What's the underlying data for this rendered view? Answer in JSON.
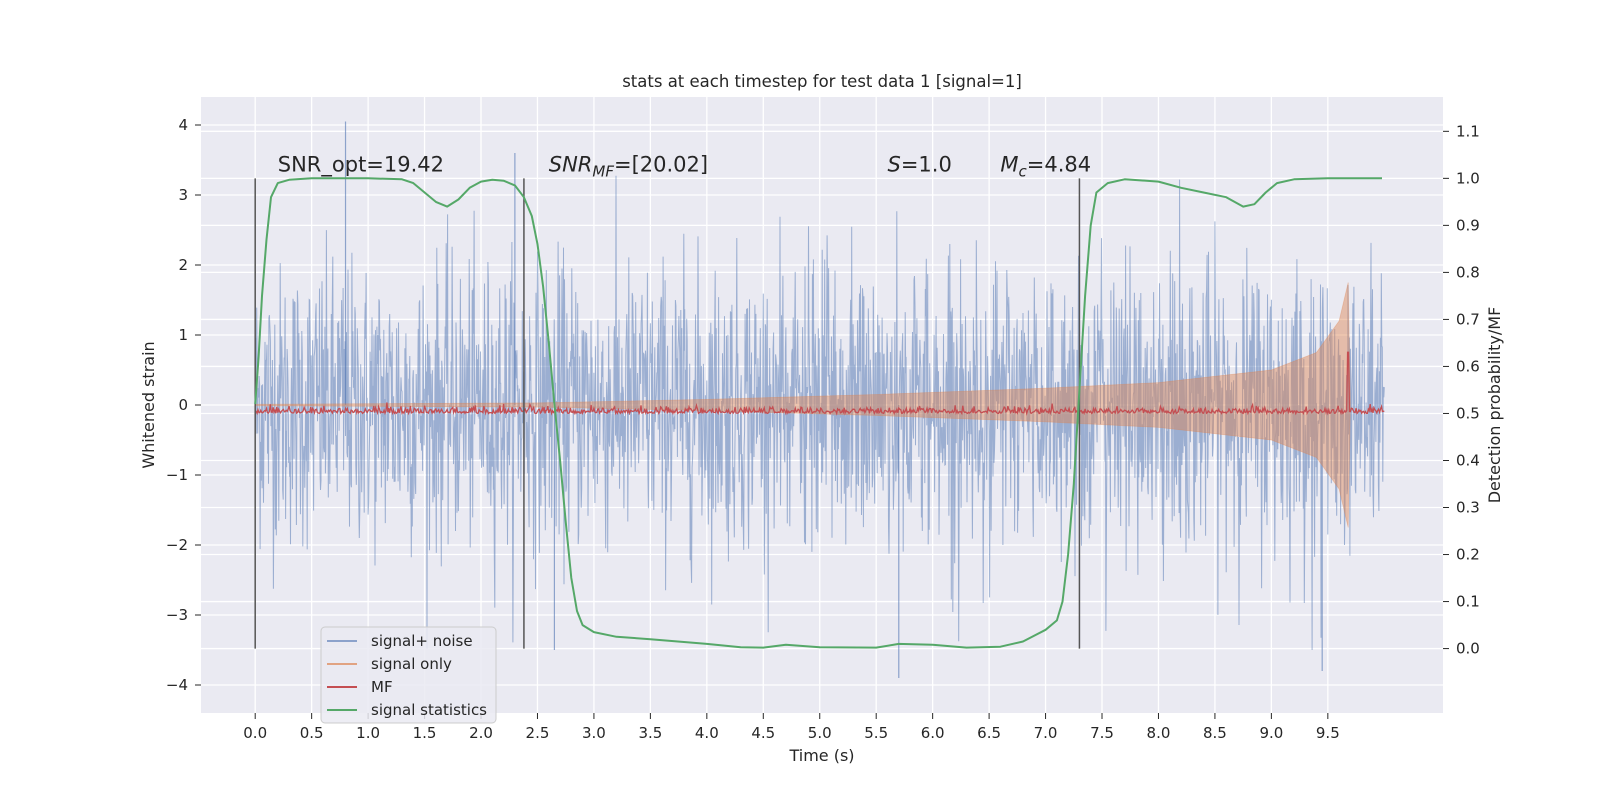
{
  "chart_data": {
    "type": "line",
    "title": "stats at each timestep for test data 1 [signal=1]",
    "xlabel": "Time (s)",
    "ylabel": "Whitened strain",
    "y2label": "Detection probability/MF",
    "xlim": [
      -0.48,
      10.52
    ],
    "ylim": [
      -4.4,
      4.4
    ],
    "y2lim": [
      -0.137,
      1.173
    ],
    "x_ticks": [
      "0.0",
      "0.5",
      "1.0",
      "1.5",
      "2.0",
      "2.5",
      "3.0",
      "3.5",
      "4.0",
      "4.5",
      "5.0",
      "5.5",
      "6.0",
      "6.5",
      "7.0",
      "7.5",
      "8.0",
      "8.5",
      "9.0",
      "9.5"
    ],
    "y_ticks": [
      "4",
      "3",
      "2",
      "1",
      "0",
      "−1",
      "−2",
      "−3",
      "−4"
    ],
    "y2_ticks": [
      "1.1",
      "1.0",
      "0.9",
      "0.8",
      "0.7",
      "0.6",
      "0.5",
      "0.4",
      "0.3",
      "0.2",
      "0.1",
      "0.0"
    ],
    "grid": true,
    "legend_position": "lower-left",
    "annotations": {
      "snr_opt": "SNR_opt=19.42",
      "snr_mf_italic": "SNR",
      "snr_mf_sub": "MF",
      "snr_mf_rest": "=[20.02]",
      "s_italic": "S",
      "s_rest": "=1.0",
      "mc_italic": "M",
      "mc_sub": "c",
      "mc_rest": "=4.84"
    },
    "segment_markers_x": [
      0.0,
      2.38,
      7.3
    ],
    "series": [
      {
        "name": "signal+ noise",
        "color": "#4c72b0",
        "axis": "left",
        "style": "noise band, x 0.0–10.0",
        "band_sigma": 1.0,
        "notable_values": [
          [
            0.8,
            4.05
          ],
          [
            2.3,
            3.6
          ],
          [
            9.45,
            -3.8
          ],
          [
            5.7,
            -3.9
          ],
          [
            2.65,
            -3.5
          ]
        ]
      },
      {
        "name": "signal only",
        "color": "#dd8452",
        "axis": "left",
        "style": "chirp envelope",
        "envelope": [
          [
            0.0,
            0.01
          ],
          [
            2.5,
            0.03
          ],
          [
            4.0,
            0.08
          ],
          [
            5.5,
            0.15
          ],
          [
            7.0,
            0.24
          ],
          [
            8.0,
            0.32
          ],
          [
            9.0,
            0.5
          ],
          [
            9.4,
            0.75
          ],
          [
            9.6,
            1.2
          ],
          [
            9.68,
            1.75
          ],
          [
            9.7,
            0.0
          ]
        ]
      },
      {
        "name": "MF",
        "color": "#c44e52",
        "axis": "right",
        "style": "jittery line near 0.5",
        "base": 0.5,
        "peak": [
          9.68,
          0.63
        ]
      },
      {
        "name": "signal statistics",
        "color": "#55a868",
        "axis": "right",
        "points": [
          [
            0.0,
            0.52
          ],
          [
            0.03,
            0.62
          ],
          [
            0.06,
            0.75
          ],
          [
            0.1,
            0.87
          ],
          [
            0.14,
            0.96
          ],
          [
            0.2,
            0.99
          ],
          [
            0.3,
            0.997
          ],
          [
            0.5,
            1.0
          ],
          [
            1.0,
            1.0
          ],
          [
            1.3,
            0.998
          ],
          [
            1.4,
            0.99
          ],
          [
            1.5,
            0.97
          ],
          [
            1.6,
            0.95
          ],
          [
            1.7,
            0.94
          ],
          [
            1.8,
            0.955
          ],
          [
            1.9,
            0.98
          ],
          [
            2.0,
            0.993
          ],
          [
            2.1,
            0.997
          ],
          [
            2.2,
            0.995
          ],
          [
            2.3,
            0.985
          ],
          [
            2.38,
            0.96
          ],
          [
            2.45,
            0.92
          ],
          [
            2.5,
            0.86
          ],
          [
            2.55,
            0.77
          ],
          [
            2.6,
            0.65
          ],
          [
            2.65,
            0.52
          ],
          [
            2.7,
            0.4
          ],
          [
            2.75,
            0.27
          ],
          [
            2.8,
            0.15
          ],
          [
            2.85,
            0.08
          ],
          [
            2.9,
            0.05
          ],
          [
            3.0,
            0.035
          ],
          [
            3.2,
            0.025
          ],
          [
            3.5,
            0.02
          ],
          [
            4.0,
            0.01
          ],
          [
            4.3,
            0.003
          ],
          [
            4.5,
            0.002
          ],
          [
            4.7,
            0.008
          ],
          [
            5.0,
            0.003
          ],
          [
            5.5,
            0.002
          ],
          [
            5.7,
            0.01
          ],
          [
            6.0,
            0.008
          ],
          [
            6.3,
            0.002
          ],
          [
            6.6,
            0.004
          ],
          [
            6.8,
            0.015
          ],
          [
            7.0,
            0.04
          ],
          [
            7.1,
            0.06
          ],
          [
            7.15,
            0.1
          ],
          [
            7.2,
            0.2
          ],
          [
            7.25,
            0.35
          ],
          [
            7.3,
            0.55
          ],
          [
            7.35,
            0.75
          ],
          [
            7.4,
            0.9
          ],
          [
            7.45,
            0.97
          ],
          [
            7.55,
            0.99
          ],
          [
            7.7,
            0.998
          ],
          [
            8.0,
            0.993
          ],
          [
            8.2,
            0.98
          ],
          [
            8.4,
            0.97
          ],
          [
            8.6,
            0.96
          ],
          [
            8.75,
            0.94
          ],
          [
            8.85,
            0.945
          ],
          [
            8.95,
            0.97
          ],
          [
            9.05,
            0.99
          ],
          [
            9.2,
            0.998
          ],
          [
            9.5,
            1.0
          ],
          [
            9.98,
            1.0
          ]
        ]
      }
    ]
  }
}
